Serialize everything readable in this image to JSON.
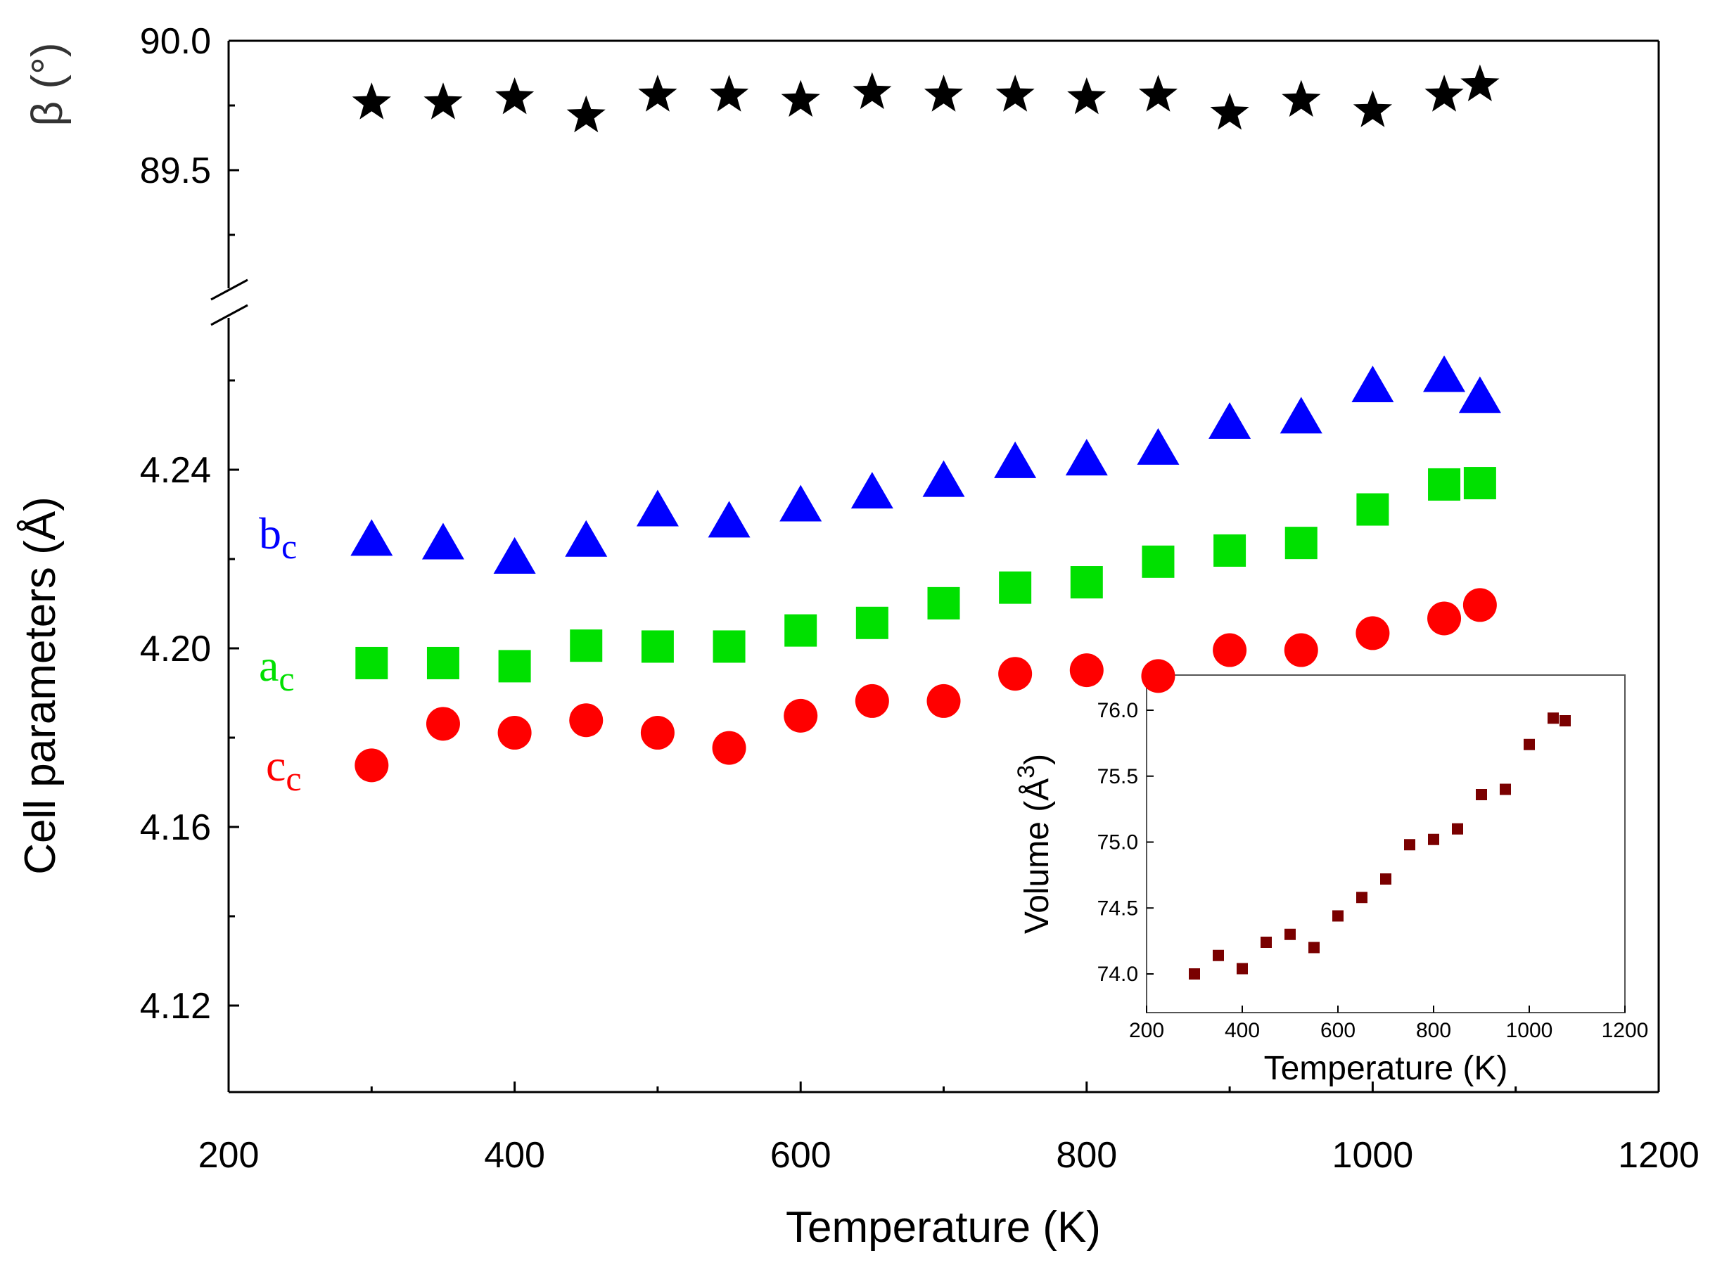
{
  "chart_data": [
    {
      "type": "scatter",
      "panel": "main",
      "xlabel": "Temperature (K)",
      "xlim": [
        200,
        1200
      ],
      "x_ticks": [
        "200",
        "400",
        "600",
        "800",
        "1000",
        "1200"
      ],
      "x": [
        300,
        350,
        400,
        450,
        500,
        550,
        600,
        650,
        700,
        750,
        800,
        850,
        900,
        950,
        1000,
        1050,
        1075
      ],
      "top_axis": {
        "ylabel": "β (°)",
        "ylim": [
          89.0,
          90.0
        ],
        "y_ticks": [
          "90.0",
          "89.5"
        ],
        "series": [
          {
            "name": "β",
            "marker": "star",
            "color": "#000000",
            "x": [
              300,
              350,
              400,
              450,
              500,
              550,
              600,
              650,
              700,
              750,
              800,
              850,
              900,
              950,
              1000,
              1050,
              1075
            ],
            "values": [
              89.76,
              89.76,
              89.78,
              89.71,
              89.79,
              89.79,
              89.77,
              89.8,
              89.79,
              89.79,
              89.78,
              89.79,
              89.72,
              89.77,
              89.73,
              89.79,
              89.83
            ]
          }
        ]
      },
      "bottom_axis": {
        "ylabel": "Cell parameters (Å)",
        "ylim": [
          4.1,
          4.28
        ],
        "y_ticks": [
          "4.12",
          "4.16",
          "4.20",
          "4.24"
        ],
        "series": [
          {
            "name": "b",
            "subscript": "c",
            "marker": "triangle",
            "color": "#0000ff",
            "x": [
              300,
              350,
              400,
              450,
              500,
              550,
              600,
              650,
              700,
              750,
              800,
              850,
              900,
              950,
              1000,
              1050,
              1075
            ],
            "values": [
              4.2245,
              4.2237,
              4.2205,
              4.2243,
              4.2311,
              4.2286,
              4.2322,
              4.2351,
              4.2377,
              4.2419,
              4.2425,
              4.2449,
              4.2507,
              4.2519,
              4.2589,
              4.2612,
              4.2565
            ]
          },
          {
            "name": "a",
            "subscript": "c",
            "marker": "square",
            "color": "#00e000",
            "x": [
              300,
              350,
              400,
              450,
              500,
              550,
              600,
              650,
              700,
              750,
              800,
              850,
              900,
              950,
              1000,
              1050,
              1075
            ],
            "values": [
              4.1967,
              4.1967,
              4.196,
              4.2006,
              4.2004,
              4.2004,
              4.204,
              4.2057,
              4.2101,
              4.2136,
              4.2148,
              4.2194,
              4.2219,
              4.2236,
              4.2311,
              4.2367,
              4.237
            ]
          },
          {
            "name": "c",
            "subscript": "c",
            "marker": "circle",
            "color": "#ff0000",
            "x": [
              300,
              350,
              400,
              450,
              500,
              550,
              600,
              650,
              700,
              750,
              800,
              850,
              900,
              950,
              1000,
              1050,
              1075
            ],
            "values": [
              4.1738,
              4.1831,
              4.1811,
              4.1839,
              4.1811,
              4.1777,
              4.1849,
              4.1882,
              4.1882,
              4.1943,
              4.1951,
              4.1938,
              4.1996,
              4.1996,
              4.2034,
              4.2067,
              4.2097
            ]
          }
        ]
      }
    },
    {
      "type": "scatter",
      "panel": "inset",
      "xlabel": "Temperature (K)",
      "ylabel": "Volume (Å³)",
      "ylabel_text": "Volume (Å",
      "ylabel_sup": "3",
      "ylabel_close": ")",
      "xlim": [
        200,
        1200
      ],
      "ylim": [
        73.8,
        76.2
      ],
      "x_ticks": [
        "200",
        "400",
        "600",
        "800",
        "1000",
        "1200"
      ],
      "y_ticks": [
        "74.0",
        "74.5",
        "75.0",
        "75.5",
        "76.0"
      ],
      "series": [
        {
          "name": "Volume",
          "marker": "square",
          "color": "#7a0000",
          "x": [
            300,
            350,
            400,
            450,
            500,
            550,
            600,
            650,
            700,
            750,
            800,
            850,
            900,
            950,
            1000,
            1050,
            1075
          ],
          "values": [
            74.0,
            74.14,
            74.04,
            74.24,
            74.3,
            74.2,
            74.44,
            74.58,
            74.72,
            74.98,
            75.02,
            75.1,
            75.36,
            75.4,
            75.74,
            75.94,
            75.92
          ]
        }
      ]
    }
  ]
}
